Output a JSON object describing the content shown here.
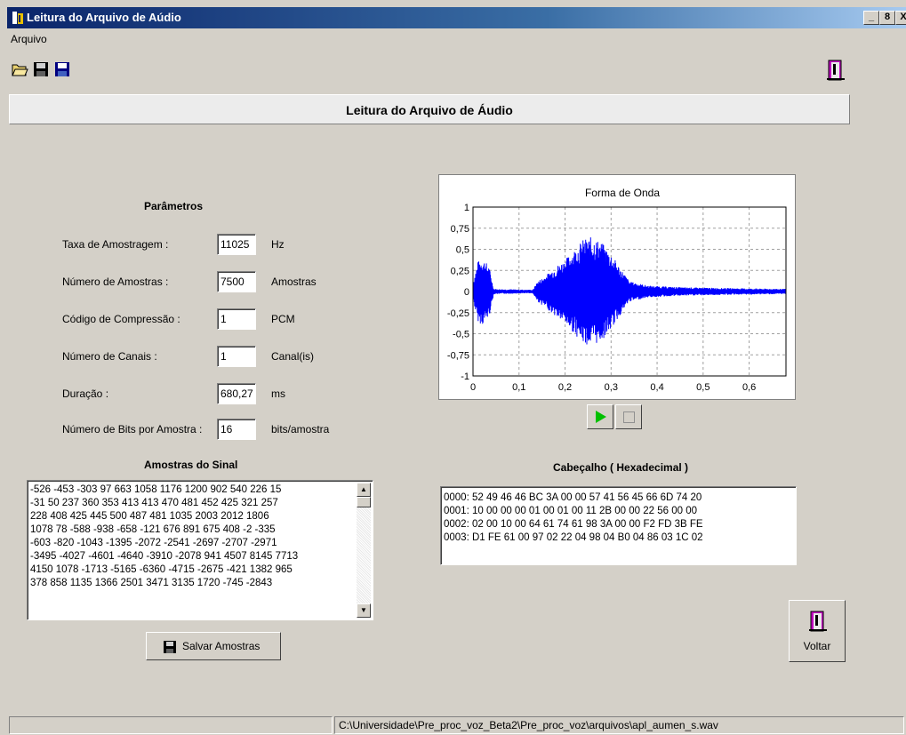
{
  "window": {
    "title": "Leitura do Arquivo de Aúdio",
    "controls": [
      "_",
      "8",
      "X"
    ]
  },
  "menu": {
    "items": [
      "Arquivo"
    ]
  },
  "toolbar": {
    "icons": [
      "open-folder-icon",
      "save-icon",
      "save-as-icon",
      "exit-door-icon"
    ]
  },
  "header": {
    "title": "Leitura do Arquivo de Áudio"
  },
  "parameters": {
    "title": "Parâmetros",
    "rows": [
      {
        "label": "Taxa de Amostragem :",
        "value": "11025",
        "unit": "Hz"
      },
      {
        "label": "Número de Amostras :",
        "value": "7500",
        "unit": "Amostras"
      },
      {
        "label": "Código de Compressão :",
        "value": "1",
        "unit": "PCM"
      },
      {
        "label": "Número de Canais :",
        "value": "1",
        "unit": "Canal(is)"
      },
      {
        "label": "Duração :",
        "value": "680,27",
        "unit": "ms"
      },
      {
        "label": "Número de Bits por Amostra :",
        "value": "16",
        "unit": "bits/amostra"
      }
    ]
  },
  "samples": {
    "title": "Amostras do Sinal",
    "lines": [
      "-526 -453 -303 97 663 1058 1176 1200 902 540 226 15",
      "-31 50 237 360 353 413 413 470 481 452 425 321 257",
      "228 408 425 445 500 487 481 1035 2003 2012 1806",
      "1078 78 -588 -938 -658 -121 676 891 675 408 -2 -335",
      "-603 -820 -1043 -1395 -2072 -2541 -2697 -2707 -2971",
      "-3495 -4027 -4601 -4640 -3910 -2078 941 4507 8145 7713",
      " 4150 1078 -1713 -5165 -6360 -4715 -2675 -421 1382 965",
      "378 858 1135 1366 2501 3471 3135 1720 -745 -2843"
    ],
    "save_button": "Salvar Amostras"
  },
  "header_hex": {
    "title": "Cabeçalho ( Hexadecimal )",
    "lines": [
      "0000: 52 49 46 46 BC 3A 00 00 57 41 56 45 66 6D 74 20",
      "0001: 10 00 00 00 01 00 01 00 11 2B 00 00 22 56 00 00",
      "0002: 02 00 10 00 64 61 74 61 98 3A 00 00 F2 FD 3B FE",
      "0003: D1 FE 61 00 97 02 22 04 98 04 B0 04 86 03 1C 02"
    ]
  },
  "player": {
    "play_icon": "play-icon",
    "stop_icon": "stop-icon"
  },
  "back_button": {
    "label": "Voltar"
  },
  "statusbar": {
    "left": "",
    "path": "C:\\Universidade\\Pre_proc_voz_Beta2\\Pre_proc_voz\\arquivos\\apl_aumen_s.wav"
  },
  "colors": {
    "waveform": "#0000ff",
    "play": "#00c000",
    "title_bar": "#0a246a"
  },
  "chart_data": {
    "type": "line",
    "title": "Forma de Onda",
    "xlabel": "",
    "ylabel": "",
    "xlim": [
      0,
      0.68
    ],
    "ylim": [
      -1,
      1
    ],
    "xticks": [
      "0",
      "0,1",
      "0,2",
      "0,3",
      "0,4",
      "0,5",
      "0,6"
    ],
    "yticks": [
      "1",
      "0,75",
      "0,5",
      "0,25",
      "0",
      "-0,25",
      "-0,5",
      "-0,75",
      "-1"
    ],
    "grid": true,
    "series": [
      {
        "envelope": [
          {
            "x": 0.0,
            "amp": 0.1
          },
          {
            "x": 0.01,
            "amp": 0.35
          },
          {
            "x": 0.02,
            "amp": 0.4
          },
          {
            "x": 0.035,
            "amp": 0.3
          },
          {
            "x": 0.045,
            "amp": 0.03
          },
          {
            "x": 0.13,
            "amp": 0.02
          },
          {
            "x": 0.14,
            "amp": 0.12
          },
          {
            "x": 0.16,
            "amp": 0.2
          },
          {
            "x": 0.18,
            "amp": 0.3
          },
          {
            "x": 0.2,
            "amp": 0.38
          },
          {
            "x": 0.22,
            "amp": 0.5
          },
          {
            "x": 0.24,
            "amp": 0.62
          },
          {
            "x": 0.26,
            "amp": 0.65
          },
          {
            "x": 0.28,
            "amp": 0.58
          },
          {
            "x": 0.3,
            "amp": 0.45
          },
          {
            "x": 0.32,
            "amp": 0.28
          },
          {
            "x": 0.34,
            "amp": 0.12
          },
          {
            "x": 0.38,
            "amp": 0.07
          },
          {
            "x": 0.45,
            "amp": 0.05
          },
          {
            "x": 0.55,
            "amp": 0.04
          },
          {
            "x": 0.68,
            "amp": 0.03
          }
        ]
      }
    ]
  }
}
